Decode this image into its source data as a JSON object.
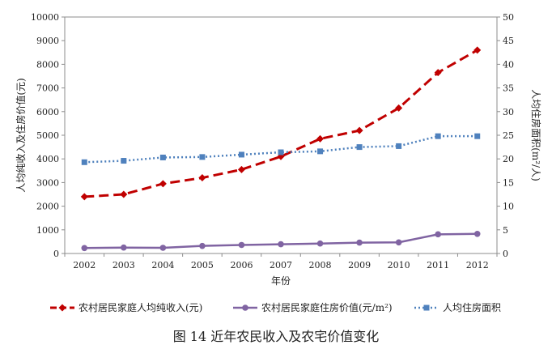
{
  "chart_data": {
    "type": "line",
    "title": "图 14  近年农民收入及农宅价值变化",
    "xlabel": "年份",
    "ylabel_left": "人均纯收入及住房价值(元)",
    "ylabel_right": "人均住房面积(m²/人)",
    "categories": [
      "2002",
      "2003",
      "2004",
      "2005",
      "2006",
      "2007",
      "2008",
      "2009",
      "2010",
      "2011",
      "2012"
    ],
    "ylim_left": [
      0,
      10000
    ],
    "yticks_left": [
      0,
      1000,
      2000,
      3000,
      4000,
      5000,
      6000,
      7000,
      8000,
      9000,
      10000
    ],
    "ylim_right": [
      0,
      50
    ],
    "yticks_right": [
      0,
      5,
      10,
      15,
      20,
      25,
      30,
      35,
      40,
      45,
      50
    ],
    "grid": false,
    "legend_position": "bottom",
    "series": [
      {
        "name": "农村居民家庭人均纯收入(元)",
        "axis": "left",
        "color": "#C00000",
        "style": "dashed",
        "marker": "diamond",
        "values": [
          2400,
          2500,
          2950,
          3200,
          3550,
          4100,
          4850,
          5200,
          6150,
          7650,
          8600
        ]
      },
      {
        "name": "农村居民家庭住房价值(元/m²)",
        "axis": "left",
        "color": "#8064A2",
        "style": "solid",
        "marker": "circle",
        "values": [
          230,
          250,
          240,
          320,
          360,
          390,
          420,
          460,
          470,
          810,
          830
        ]
      },
      {
        "name": "人均住房面积",
        "axis": "right",
        "color": "#4F81BD",
        "style": "dotted",
        "marker": "square",
        "values": [
          19.3,
          19.6,
          20.3,
          20.4,
          20.9,
          21.4,
          21.6,
          22.5,
          22.7,
          24.8,
          24.8
        ]
      }
    ]
  }
}
